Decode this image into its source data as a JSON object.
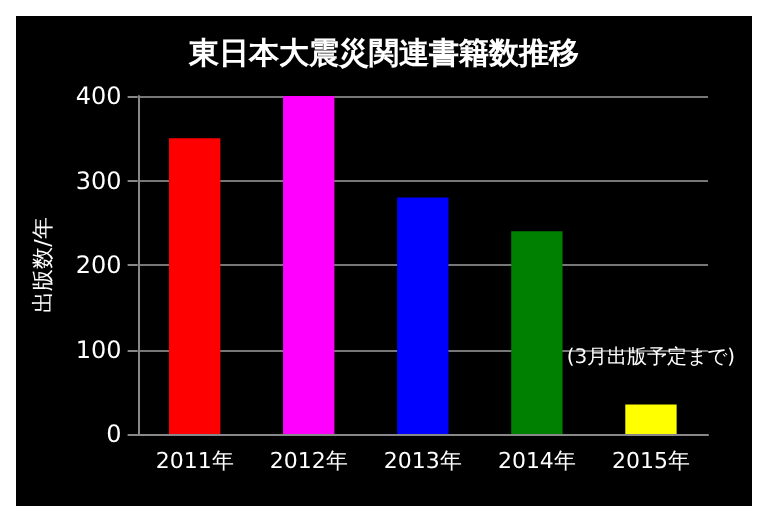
{
  "chart_data": {
    "type": "bar",
    "title": "東日本大震災関連書籍数推移",
    "ylabel": "出版数/年",
    "categories": [
      "2011年",
      "2012年",
      "2013年",
      "2014年",
      "2015年"
    ],
    "values": [
      350,
      400,
      280,
      240,
      35
    ],
    "colors": [
      "#ff0000",
      "#ff00ff",
      "#0000ff",
      "#008000",
      "#ffff00"
    ],
    "ylim": [
      0,
      400
    ],
    "yticks": [
      0,
      100,
      200,
      300,
      400
    ],
    "grid": "y",
    "annotations": [
      {
        "text": "(3月出版予定まで)",
        "x": "2015年",
        "y": 35
      }
    ]
  }
}
